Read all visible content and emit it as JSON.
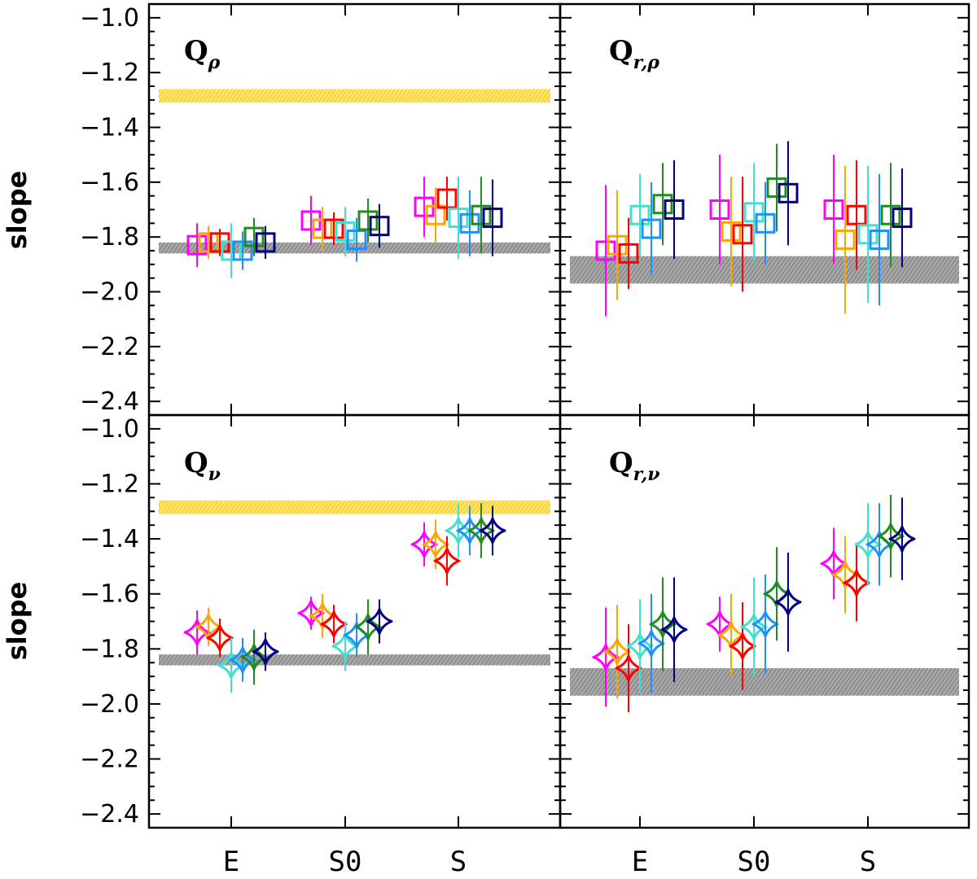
{
  "figure": {
    "ylabel": "slope",
    "y_ticks": [
      "−1.0",
      "−1.2",
      "−1.4",
      "−1.6",
      "−1.8",
      "−2.0",
      "−2.2",
      "−2.4"
    ],
    "x_categories": [
      "E",
      "S0",
      "S"
    ]
  },
  "chart_data": [
    {
      "type": "scatter",
      "panel": "top-left",
      "label_main": "Q",
      "label_sub": "ρ",
      "marker": "square",
      "categories": [
        "E",
        "S0",
        "S"
      ],
      "ylim": [
        -2.45,
        -0.95
      ],
      "bands": [
        {
          "color": "#ffd700",
          "y_low": -1.31,
          "y_high": -1.26
        },
        {
          "color": "#888888",
          "y_low": -1.86,
          "y_high": -1.82
        }
      ],
      "series": [
        {
          "color": "#ff00ff",
          "values": [
            -1.83,
            -1.74,
            -1.69
          ],
          "errors": [
            0.08,
            0.09,
            0.11
          ]
        },
        {
          "color": "#ffa500",
          "values": [
            -1.82,
            -1.77,
            -1.72
          ],
          "errors": [
            0.06,
            0.08,
            0.1
          ]
        },
        {
          "color": "#ff0000",
          "values": [
            -1.82,
            -1.77,
            -1.66
          ],
          "errors": [
            0.05,
            0.06,
            0.08
          ]
        },
        {
          "color": "#40e0d0",
          "values": [
            -1.85,
            -1.78,
            -1.73
          ],
          "errors": [
            0.1,
            0.09,
            0.15
          ]
        },
        {
          "color": "#1e90ff",
          "values": [
            -1.85,
            -1.81,
            -1.75
          ],
          "errors": [
            0.07,
            0.08,
            0.12
          ]
        },
        {
          "color": "#228b22",
          "values": [
            -1.8,
            -1.74,
            -1.72
          ],
          "errors": [
            0.07,
            0.08,
            0.14
          ]
        },
        {
          "color": "#000080",
          "values": [
            -1.82,
            -1.76,
            -1.73
          ],
          "errors": [
            0.06,
            0.08,
            0.14
          ]
        }
      ]
    },
    {
      "type": "scatter",
      "panel": "top-right",
      "label_main": "Q",
      "label_sub": "r,ρ",
      "marker": "square",
      "categories": [
        "E",
        "S0",
        "S"
      ],
      "ylim": [
        -2.45,
        -0.95
      ],
      "bands": [
        {
          "color": "#888888",
          "y_low": -1.97,
          "y_high": -1.87
        }
      ],
      "series": [
        {
          "color": "#ff00ff",
          "values": [
            -1.85,
            -1.7,
            -1.7
          ],
          "errors": [
            0.24,
            0.2,
            0.2
          ]
        },
        {
          "color": "#ffa500",
          "values": [
            -1.83,
            -1.78,
            -1.81
          ],
          "errors": [
            0.2,
            0.2,
            0.27
          ]
        },
        {
          "color": "#ff0000",
          "values": [
            -1.86,
            -1.79,
            -1.72
          ],
          "errors": [
            0.13,
            0.21,
            0.2
          ]
        },
        {
          "color": "#40e0d0",
          "values": [
            -1.72,
            -1.71,
            -1.79
          ],
          "errors": [
            0.15,
            0.18,
            0.25
          ]
        },
        {
          "color": "#1e90ff",
          "values": [
            -1.77,
            -1.75,
            -1.81
          ],
          "errors": [
            0.17,
            0.15,
            0.24
          ]
        },
        {
          "color": "#228b22",
          "values": [
            -1.68,
            -1.62,
            -1.72
          ],
          "errors": [
            0.15,
            0.16,
            0.19
          ]
        },
        {
          "color": "#000080",
          "values": [
            -1.7,
            -1.64,
            -1.73
          ],
          "errors": [
            0.18,
            0.19,
            0.18
          ]
        }
      ]
    },
    {
      "type": "scatter",
      "panel": "bottom-left",
      "label_main": "Q",
      "label_sub": "ν",
      "marker": "star",
      "categories": [
        "E",
        "S0",
        "S"
      ],
      "ylim": [
        -2.45,
        -0.95
      ],
      "bands": [
        {
          "color": "#ffd700",
          "y_low": -1.31,
          "y_high": -1.26
        },
        {
          "color": "#888888",
          "y_low": -1.86,
          "y_high": -1.82
        }
      ],
      "series": [
        {
          "color": "#ff00ff",
          "values": [
            -1.74,
            -1.67,
            -1.42
          ],
          "errors": [
            0.08,
            0.06,
            0.08
          ]
        },
        {
          "color": "#ffa500",
          "values": [
            -1.72,
            -1.68,
            -1.42
          ],
          "errors": [
            0.07,
            0.08,
            0.09
          ]
        },
        {
          "color": "#ff0000",
          "values": [
            -1.76,
            -1.71,
            -1.48
          ],
          "errors": [
            0.07,
            0.07,
            0.09
          ]
        },
        {
          "color": "#40e0d0",
          "values": [
            -1.86,
            -1.79,
            -1.37
          ],
          "errors": [
            0.1,
            0.09,
            0.1
          ]
        },
        {
          "color": "#1e90ff",
          "values": [
            -1.84,
            -1.75,
            -1.37
          ],
          "errors": [
            0.08,
            0.08,
            0.09
          ]
        },
        {
          "color": "#228b22",
          "values": [
            -1.83,
            -1.72,
            -1.37
          ],
          "errors": [
            0.1,
            0.1,
            0.1
          ]
        },
        {
          "color": "#000080",
          "values": [
            -1.81,
            -1.7,
            -1.37
          ],
          "errors": [
            0.07,
            0.08,
            0.09
          ]
        }
      ]
    },
    {
      "type": "scatter",
      "panel": "bottom-right",
      "label_main": "Q",
      "label_sub": "r,ν",
      "marker": "star",
      "categories": [
        "E",
        "S0",
        "S"
      ],
      "ylim": [
        -2.45,
        -0.95
      ],
      "bands": [
        {
          "color": "#888888",
          "y_low": -1.97,
          "y_high": -1.87
        }
      ],
      "series": [
        {
          "color": "#ff00ff",
          "values": [
            -1.83,
            -1.71,
            -1.49
          ],
          "errors": [
            0.18,
            0.1,
            0.13
          ]
        },
        {
          "color": "#ffa500",
          "values": [
            -1.81,
            -1.75,
            -1.53
          ],
          "errors": [
            0.17,
            0.15,
            0.14
          ]
        },
        {
          "color": "#ff0000",
          "values": [
            -1.87,
            -1.79,
            -1.56
          ],
          "errors": [
            0.16,
            0.16,
            0.14
          ]
        },
        {
          "color": "#40e0d0",
          "values": [
            -1.79,
            -1.72,
            -1.42
          ],
          "errors": [
            0.17,
            0.18,
            0.15
          ]
        },
        {
          "color": "#1e90ff",
          "values": [
            -1.78,
            -1.71,
            -1.42
          ],
          "errors": [
            0.18,
            0.18,
            0.15
          ]
        },
        {
          "color": "#228b22",
          "values": [
            -1.71,
            -1.6,
            -1.39
          ],
          "errors": [
            0.17,
            0.17,
            0.15
          ]
        },
        {
          "color": "#000080",
          "values": [
            -1.73,
            -1.63,
            -1.4
          ],
          "errors": [
            0.19,
            0.18,
            0.15
          ]
        }
      ]
    }
  ]
}
